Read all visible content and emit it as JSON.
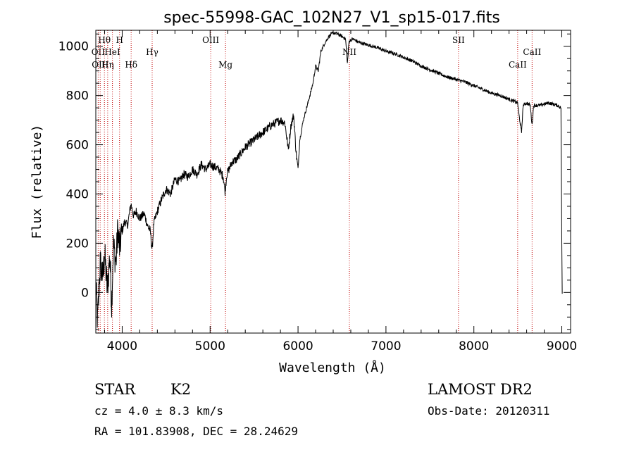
{
  "chart_data": {
    "type": "line",
    "title": "spec-55998-GAC_102N27_V1_sp15-017.fits",
    "xlabel": "Wavelength (Å)",
    "ylabel": "Flux (relative)",
    "xlim": [
      3700,
      9100
    ],
    "ylim": [
      -165,
      1065
    ],
    "xticks": [
      4000,
      5000,
      6000,
      7000,
      8000,
      9000
    ],
    "yticks": [
      0,
      200,
      400,
      600,
      800,
      1000
    ],
    "grid": false,
    "spectrum_anchors": [
      [
        3700,
        40
      ],
      [
        3720,
        -120
      ],
      [
        3750,
        120
      ],
      [
        3780,
        60
      ],
      [
        3800,
        160
      ],
      [
        3830,
        10
      ],
      [
        3860,
        150
      ],
      [
        3880,
        -50
      ],
      [
        3900,
        190
      ],
      [
        3930,
        120
      ],
      [
        3950,
        260
      ],
      [
        3970,
        180
      ],
      [
        4000,
        250
      ],
      [
        4030,
        290
      ],
      [
        4060,
        270
      ],
      [
        4100,
        360
      ],
      [
        4130,
        310
      ],
      [
        4160,
        330
      ],
      [
        4200,
        300
      ],
      [
        4250,
        320
      ],
      [
        4290,
        270
      ],
      [
        4320,
        250
      ],
      [
        4340,
        170
      ],
      [
        4360,
        280
      ],
      [
        4400,
        330
      ],
      [
        4450,
        380
      ],
      [
        4500,
        420
      ],
      [
        4550,
        400
      ],
      [
        4600,
        460
      ],
      [
        4650,
        450
      ],
      [
        4700,
        480
      ],
      [
        4750,
        470
      ],
      [
        4800,
        500
      ],
      [
        4850,
        480
      ],
      [
        4900,
        520
      ],
      [
        4950,
        500
      ],
      [
        5000,
        520
      ],
      [
        5050,
        510
      ],
      [
        5100,
        500
      ],
      [
        5150,
        470
      ],
      [
        5170,
        410
      ],
      [
        5190,
        480
      ],
      [
        5250,
        530
      ],
      [
        5300,
        540
      ],
      [
        5400,
        590
      ],
      [
        5500,
        620
      ],
      [
        5600,
        650
      ],
      [
        5700,
        680
      ],
      [
        5800,
        700
      ],
      [
        5850,
        690
      ],
      [
        5890,
        580
      ],
      [
        5920,
        680
      ],
      [
        5950,
        720
      ],
      [
        5980,
        560
      ],
      [
        6000,
        500
      ],
      [
        6020,
        620
      ],
      [
        6060,
        700
      ],
      [
        6120,
        780
      ],
      [
        6170,
        850
      ],
      [
        6200,
        920
      ],
      [
        6230,
        900
      ],
      [
        6260,
        980
      ],
      [
        6300,
        1010
      ],
      [
        6350,
        1040
      ],
      [
        6400,
        1055
      ],
      [
        6450,
        1050
      ],
      [
        6500,
        1040
      ],
      [
        6540,
        1030
      ],
      [
        6562,
        930
      ],
      [
        6580,
        1020
      ],
      [
        6620,
        1030
      ],
      [
        6700,
        1015
      ],
      [
        6800,
        1005
      ],
      [
        6900,
        995
      ],
      [
        7000,
        980
      ],
      [
        7100,
        970
      ],
      [
        7200,
        955
      ],
      [
        7300,
        940
      ],
      [
        7400,
        920
      ],
      [
        7500,
        905
      ],
      [
        7600,
        890
      ],
      [
        7700,
        875
      ],
      [
        7800,
        865
      ],
      [
        7900,
        855
      ],
      [
        8000,
        840
      ],
      [
        8100,
        825
      ],
      [
        8200,
        810
      ],
      [
        8300,
        800
      ],
      [
        8400,
        785
      ],
      [
        8498,
        770
      ],
      [
        8510,
        730
      ],
      [
        8542,
        650
      ],
      [
        8560,
        760
      ],
      [
        8600,
        770
      ],
      [
        8640,
        760
      ],
      [
        8662,
        680
      ],
      [
        8680,
        760
      ],
      [
        8750,
        760
      ],
      [
        8850,
        770
      ],
      [
        8950,
        760
      ],
      [
        8990,
        750
      ],
      [
        9000,
        210
      ],
      [
        9005,
        -5
      ]
    ],
    "emission_lines": [
      {
        "name": "Hθ",
        "wavelength": 3798,
        "row": 1
      },
      {
        "name": "H",
        "wavelength": 3970,
        "row": 1
      },
      {
        "name": "OII",
        "wavelength": 3727,
        "row": 2
      },
      {
        "name": "HeI",
        "wavelength": 3889,
        "row": 2
      },
      {
        "name": "Hγ",
        "wavelength": 4341,
        "row": 2
      },
      {
        "name": "OIII",
        "wavelength": 5007,
        "row": 1
      },
      {
        "name": "NII",
        "wavelength": 6584,
        "row": 2
      },
      {
        "name": "SII",
        "wavelength": 7825,
        "row": 1
      },
      {
        "name": "CaII",
        "wavelength": 8662,
        "row": 2
      },
      {
        "name": "OIII",
        "wavelength": 3750,
        "row": 3
      },
      {
        "name": "Hη",
        "wavelength": 3835,
        "row": 3
      },
      {
        "name": "Hδ",
        "wavelength": 4102,
        "row": 3
      },
      {
        "name": "Mg",
        "wavelength": 5175,
        "row": 3
      },
      {
        "name": "CaII",
        "wavelength": 8498,
        "row": 3
      }
    ],
    "line_color": "#c00000"
  },
  "info": {
    "class_label": "STAR",
    "subclass_label": "K2",
    "survey_label": "LAMOST DR2",
    "cz_text": "cz = 4.0 ± 8.3 km/s",
    "obs_date_text": "Obs-Date: 20120311",
    "coords_text": "RA = 101.83908, DEC =  28.24629"
  }
}
